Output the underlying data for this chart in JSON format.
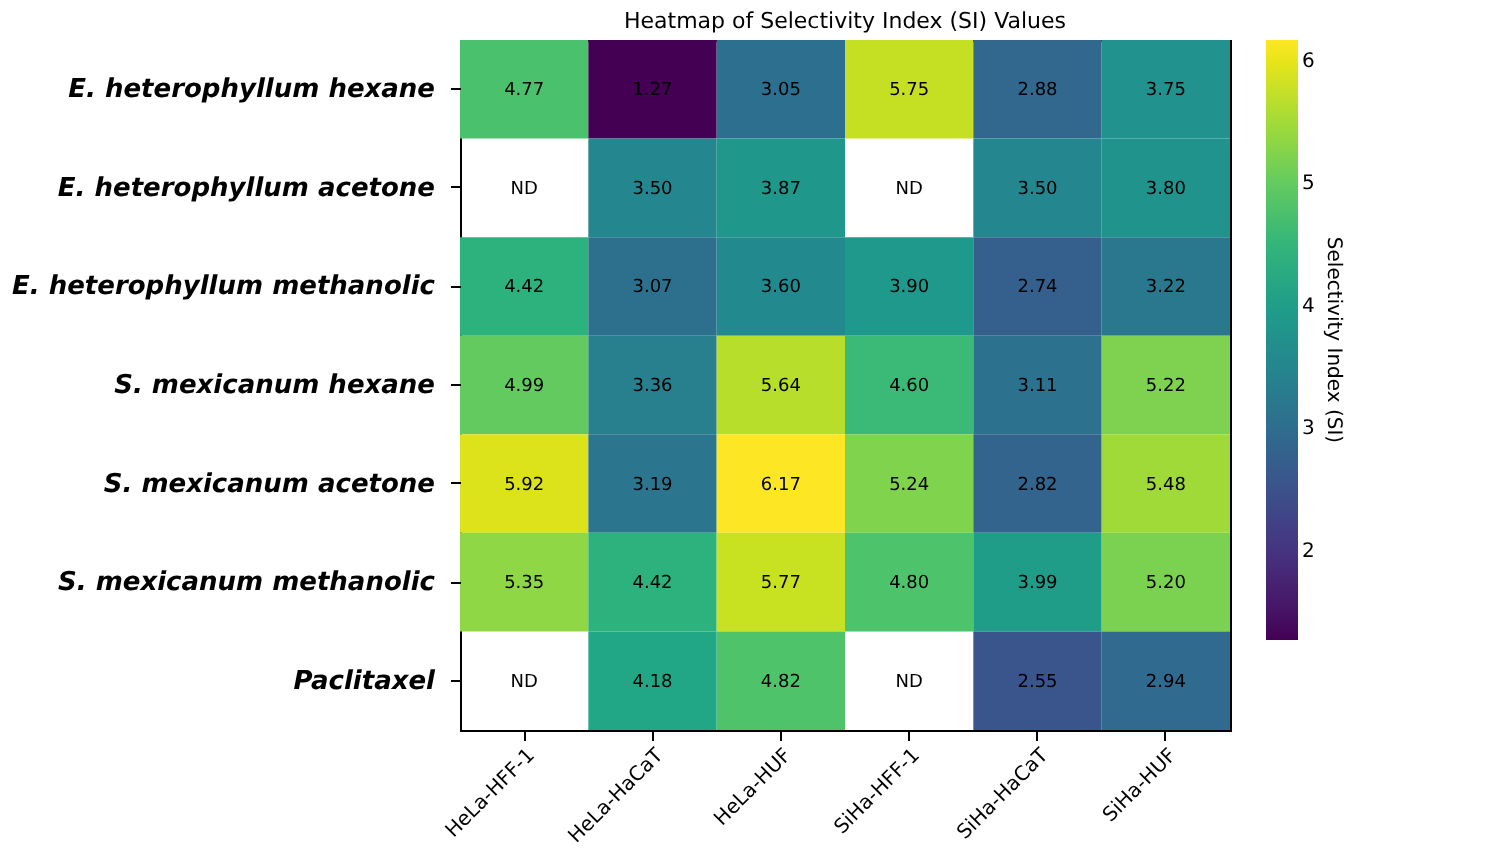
{
  "chart_data": {
    "type": "heatmap",
    "title": "Heatmap of Selectivity Index (SI) Values",
    "clabel": "Selectivity Index (SI)",
    "categories": [
      "HeLa-HFF-1",
      "HeLa-HaCaT",
      "HeLa-HUF",
      "SiHa-HFF-1",
      "SiHa-HaCaT",
      "SiHa-HUF"
    ],
    "y_categories": [
      "E. heterophyllum hexane",
      "E. heterophyllum acetone",
      "E. heterophyllum methanolic",
      "S. mexicanum hexane",
      "S. mexicanum acetone",
      "S. mexicanum methanolic",
      "Paclitaxel"
    ],
    "cells": [
      [
        4.77,
        1.27,
        3.05,
        5.75,
        2.88,
        3.75
      ],
      [
        null,
        3.5,
        3.87,
        null,
        3.5,
        3.8
      ],
      [
        4.42,
        3.07,
        3.6,
        3.9,
        2.74,
        3.22
      ],
      [
        4.99,
        3.36,
        5.64,
        4.6,
        3.11,
        5.22
      ],
      [
        5.92,
        3.19,
        6.17,
        5.24,
        2.82,
        5.48
      ],
      [
        5.35,
        4.42,
        5.77,
        4.8,
        3.99,
        5.2
      ],
      [
        null,
        4.18,
        4.82,
        null,
        2.55,
        2.94
      ]
    ],
    "cell_labels": [
      [
        "4.77",
        "1.27",
        "3.05",
        "5.75",
        "2.88",
        "3.75"
      ],
      [
        "ND",
        "3.50",
        "3.87",
        "ND",
        "3.50",
        "3.80"
      ],
      [
        "4.42",
        "3.07",
        "3.60",
        "3.90",
        "2.74",
        "3.22"
      ],
      [
        "4.99",
        "3.36",
        "5.64",
        "4.60",
        "3.11",
        "5.22"
      ],
      [
        "5.92",
        "3.19",
        "6.17",
        "5.24",
        "2.82",
        "5.48"
      ],
      [
        "5.35",
        "4.42",
        "5.77",
        "4.80",
        "3.99",
        "5.20"
      ],
      [
        "ND",
        "4.18",
        "4.82",
        "ND",
        "2.55",
        "2.94"
      ]
    ],
    "clim": [
      1.27,
      6.17
    ],
    "cticks": [
      2,
      3,
      4,
      5,
      6
    ]
  }
}
